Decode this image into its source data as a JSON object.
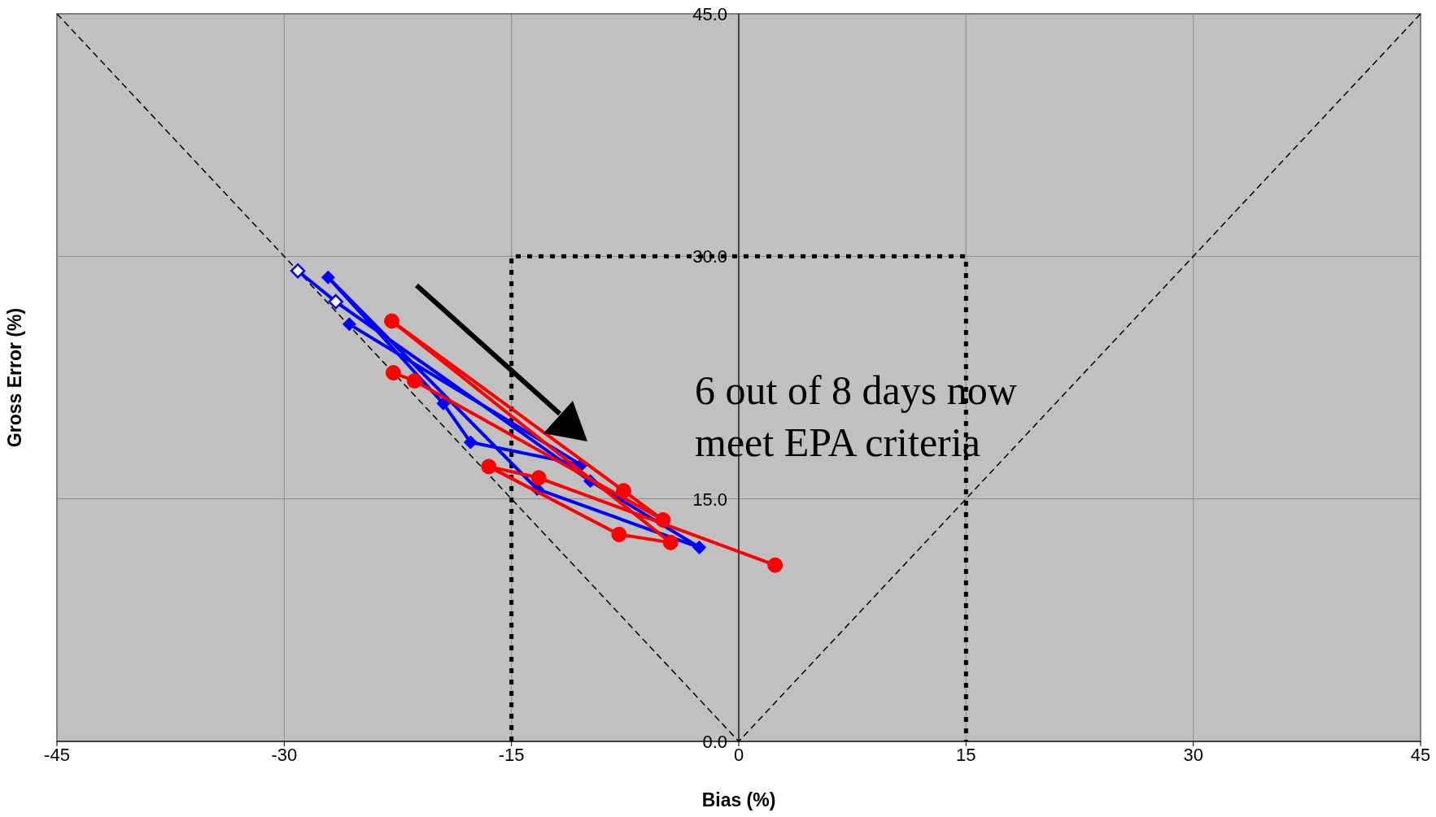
{
  "chart_data": {
    "type": "scatter",
    "xlabel": "Bias (%)",
    "ylabel": "Gross Error (%)",
    "xlim": [
      -45,
      45
    ],
    "xticks": [
      -45,
      -30,
      -15,
      0,
      15,
      30,
      45
    ],
    "ylim": [
      0,
      45
    ],
    "yticks": [
      {
        "value": 0,
        "label": "0.0"
      },
      {
        "value": 15,
        "label": "15.0"
      },
      {
        "value": 30,
        "label": "30.0"
      },
      {
        "value": 45,
        "label": "45.0"
      }
    ],
    "grid": true,
    "legend": false,
    "annotations": [
      "6 out of 8 days now meet EPA criteria"
    ],
    "series": [
      {
        "type": "line",
        "color": "#000000",
        "line_style": "dashed",
        "marker": "none",
        "x": [
          -45,
          0,
          45
        ],
        "values": [
          45,
          0,
          45
        ]
      },
      {
        "type": "line",
        "color": "#000000",
        "line_style": "dotted",
        "marker": "none",
        "x": [
          -15,
          -15,
          15,
          15
        ],
        "values": [
          0,
          30,
          30,
          0
        ]
      },
      {
        "type": "line",
        "color": "#0000ff",
        "line_style": "solid",
        "marker": "diamond",
        "x": [
          -29.1,
          -26.6,
          -9.8,
          -2.6,
          -13.3,
          -27.1,
          -19.5,
          -17.7,
          -10.4,
          -25.7
        ],
        "values": [
          29.1,
          27.2,
          16.1,
          12.0,
          15.6,
          28.7,
          20.9,
          18.5,
          17.1,
          25.8
        ]
      },
      {
        "type": "line",
        "color": "#ff0000",
        "line_style": "solid",
        "marker": "circle",
        "x": [
          -22.8,
          -21.4,
          -5.0,
          -7.6,
          -22.9,
          -4.5,
          -7.9,
          -16.5,
          -13.2,
          2.4
        ],
        "values": [
          22.8,
          22.3,
          13.7,
          15.5,
          26.0,
          12.3,
          12.8,
          17.0,
          16.3,
          10.9
        ]
      },
      {
        "type": "scatter",
        "color": "#0000ff",
        "marker": "diamond",
        "x": [
          -29.1,
          -26.6
        ],
        "values": [
          29.1,
          27.2
        ]
      }
    ]
  }
}
